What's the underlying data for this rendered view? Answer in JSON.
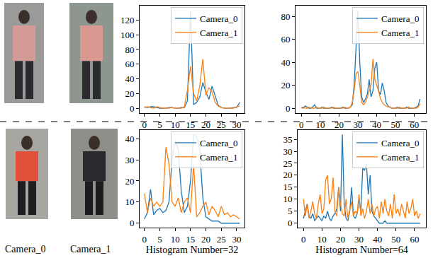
{
  "photo_labels": [
    "Camera_0",
    "Camera_1"
  ],
  "chart_data": [
    {
      "type": "line",
      "legend": "upper right",
      "grid": false,
      "x": [
        0,
        1,
        2,
        3,
        4,
        5,
        6,
        7,
        8,
        9,
        10,
        11,
        12,
        13,
        14,
        15,
        16,
        17,
        18,
        19,
        20,
        21,
        22,
        23,
        24,
        25,
        26,
        27,
        28,
        29,
        30,
        31
      ],
      "xlim": [
        -1.55,
        32.55
      ],
      "xticks": [
        0,
        5,
        10,
        15,
        20,
        25,
        30
      ],
      "ylim": [
        -6.65,
        139.65
      ],
      "yticks": [
        0,
        20,
        40,
        60,
        80,
        100,
        120
      ],
      "series": [
        {
          "name": "Camera_0",
          "color": "#1f77b4",
          "values": [
            2,
            1,
            2,
            2,
            1,
            0,
            0,
            0,
            1,
            1,
            0,
            0,
            1,
            1,
            10,
            133,
            5,
            8,
            15,
            35,
            22,
            12,
            30,
            18,
            4,
            1,
            0,
            0,
            0,
            1,
            1,
            8
          ]
        },
        {
          "name": "Camera_1",
          "color": "#ff7f0e",
          "values": [
            1,
            2,
            1,
            0,
            2,
            1,
            0,
            0,
            0,
            1,
            0,
            0,
            0,
            2,
            25,
            57,
            20,
            10,
            30,
            67,
            18,
            28,
            22,
            8,
            3,
            1,
            0,
            0,
            0,
            0,
            2,
            3
          ]
        }
      ]
    },
    {
      "type": "line",
      "legend": "upper right",
      "grid": false,
      "x": [
        0,
        1,
        2,
        3,
        4,
        5,
        6,
        7,
        8,
        9,
        10,
        11,
        12,
        13,
        14,
        15,
        16,
        17,
        18,
        19,
        20,
        21,
        22,
        23,
        24,
        25,
        26,
        27,
        28,
        29,
        30,
        31,
        32,
        33,
        34,
        35,
        36,
        37,
        38,
        39,
        40,
        41,
        42,
        43,
        44,
        45,
        46,
        47,
        48,
        49,
        50,
        51,
        52,
        53,
        54,
        55,
        56,
        57,
        58,
        59,
        60,
        61,
        62,
        63
      ],
      "xlim": [
        -3.15,
        66.15
      ],
      "xticks": [
        0,
        10,
        20,
        30,
        40,
        50,
        60
      ],
      "ylim": [
        -4.25,
        89.25
      ],
      "yticks": [
        0,
        20,
        40,
        60,
        80
      ],
      "series": [
        {
          "name": "Camera_0",
          "color": "#1f77b4",
          "values": [
            1,
            0,
            2,
            1,
            0,
            0,
            1,
            3,
            0,
            0,
            0,
            1,
            0,
            0,
            0,
            0,
            1,
            0,
            0,
            0,
            0,
            0,
            1,
            0,
            0,
            0,
            1,
            3,
            20,
            55,
            85,
            40,
            10,
            5,
            8,
            12,
            25,
            10,
            15,
            35,
            40,
            15,
            12,
            22,
            15,
            5,
            2,
            1,
            0,
            0,
            0,
            1,
            0,
            0,
            0,
            0,
            1,
            0,
            0,
            0,
            0,
            1,
            2,
            8
          ]
        },
        {
          "name": "Camera_1",
          "color": "#ff7f0e",
          "values": [
            0,
            1,
            0,
            0,
            1,
            0,
            0,
            0,
            1,
            0,
            0,
            0,
            1,
            0,
            0,
            0,
            0,
            1,
            0,
            0,
            0,
            0,
            0,
            1,
            0,
            0,
            1,
            5,
            15,
            30,
            32,
            20,
            5,
            3,
            5,
            10,
            15,
            20,
            43,
            25,
            20,
            15,
            8,
            5,
            3,
            2,
            1,
            1,
            0,
            0,
            0,
            0,
            1,
            0,
            0,
            0,
            0,
            1,
            0,
            0,
            0,
            0,
            1,
            4
          ]
        }
      ]
    },
    {
      "type": "line",
      "legend": "upper right",
      "grid": false,
      "xlabel": "Histogram Number=32",
      "x": [
        0,
        1,
        2,
        3,
        4,
        5,
        6,
        7,
        8,
        9,
        10,
        11,
        12,
        13,
        14,
        15,
        16,
        17,
        18,
        19,
        20,
        21,
        22,
        23,
        24,
        25,
        26,
        27,
        28,
        29,
        30,
        31
      ],
      "xlim": [
        -1.55,
        32.55
      ],
      "xticks": [
        0,
        5,
        10,
        15,
        20,
        25,
        30
      ],
      "ylim": [
        -2.1,
        44.1
      ],
      "yticks": [
        0,
        10,
        20,
        30,
        40
      ],
      "series": [
        {
          "name": "Camera_0",
          "color": "#1f77b4",
          "values": [
            2,
            5,
            16,
            4,
            6,
            7,
            5,
            6,
            10,
            30,
            39,
            35,
            15,
            5,
            8,
            20,
            42,
            41,
            35,
            12,
            3,
            2,
            1,
            1,
            1,
            0,
            0,
            0,
            0,
            0,
            0,
            0
          ]
        },
        {
          "name": "Camera_1",
          "color": "#ff7f0e",
          "values": [
            14,
            5,
            12,
            8,
            10,
            8,
            10,
            36,
            28,
            10,
            8,
            12,
            5,
            10,
            12,
            5,
            28,
            3,
            5,
            8,
            10,
            4,
            8,
            6,
            3,
            8,
            4,
            5,
            3,
            4,
            3,
            2
          ]
        }
      ]
    },
    {
      "type": "line",
      "legend": "upper right",
      "grid": false,
      "xlabel": "Histogram Number=64",
      "x": [
        0,
        1,
        2,
        3,
        4,
        5,
        6,
        7,
        8,
        9,
        10,
        11,
        12,
        13,
        14,
        15,
        16,
        17,
        18,
        19,
        20,
        21,
        22,
        23,
        24,
        25,
        26,
        27,
        28,
        29,
        30,
        31,
        32,
        33,
        34,
        35,
        36,
        37,
        38,
        39,
        40,
        41,
        42,
        43,
        44,
        45,
        46,
        47,
        48,
        49,
        50,
        51,
        52,
        53,
        54,
        55,
        56,
        57,
        58,
        59,
        60,
        61,
        62,
        63
      ],
      "xlim": [
        -3.15,
        66.15
      ],
      "xticks": [
        0,
        10,
        20,
        30,
        40,
        50,
        60
      ],
      "ylim": [
        -1.85,
        38.85
      ],
      "yticks": [
        0,
        5,
        10,
        15,
        20,
        25,
        30,
        35
      ],
      "series": [
        {
          "name": "Camera_0",
          "color": "#1f77b4",
          "values": [
            2,
            5,
            8,
            3,
            2,
            4,
            1,
            2,
            3,
            2,
            1,
            3,
            2,
            5,
            2,
            1,
            3,
            4,
            6,
            15,
            5,
            37,
            8,
            2,
            1,
            5,
            15,
            3,
            2,
            4,
            10,
            5,
            23,
            22,
            25,
            12,
            20,
            5,
            3,
            2,
            1,
            0,
            0,
            0,
            1,
            0,
            0,
            0,
            0,
            0,
            0,
            0,
            0,
            0,
            0,
            0,
            0,
            0,
            0,
            0,
            0,
            0,
            0,
            0
          ]
        },
        {
          "name": "Camera_1",
          "color": "#ff7f0e",
          "values": [
            10,
            3,
            8,
            2,
            5,
            9,
            4,
            2,
            8,
            12,
            4,
            6,
            18,
            20,
            8,
            10,
            19,
            5,
            3,
            15,
            8,
            4,
            3,
            10,
            2,
            6,
            9,
            3,
            5,
            4,
            12,
            3,
            6,
            2,
            5,
            10,
            4,
            8,
            3,
            6,
            7,
            2,
            9,
            4,
            10,
            5,
            3,
            8,
            2,
            12,
            4,
            6,
            3,
            8,
            5,
            2,
            9,
            4,
            6,
            10,
            3,
            5,
            2,
            4
          ]
        }
      ]
    }
  ]
}
